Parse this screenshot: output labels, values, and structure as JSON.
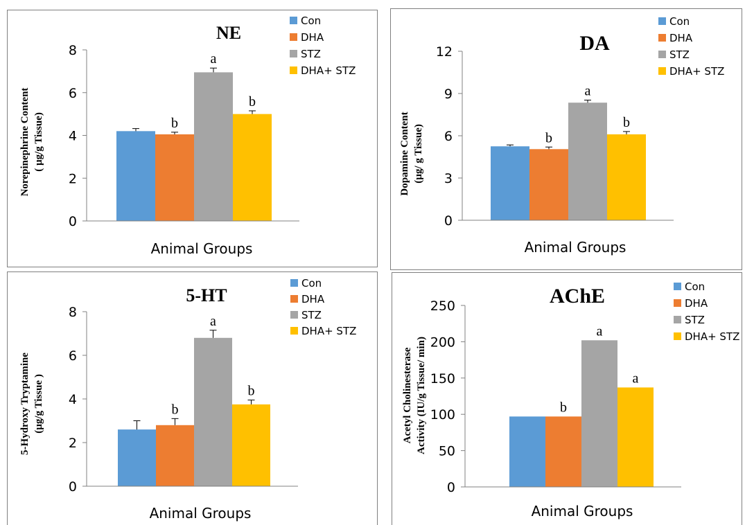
{
  "colors": {
    "Con": "#5B9BD5",
    "DHA": "#ED7D31",
    "STZ": "#A5A5A5",
    "DHA+ STZ": "#FFC000"
  },
  "chart_data": [
    {
      "type": "bar",
      "title": "NE",
      "xlabel": "Animal Groups",
      "ylabel": [
        "Norepinephrine Content",
        "( µg/g Tissue)"
      ],
      "ylim": [
        0,
        8
      ],
      "yticks": [
        0,
        2,
        4,
        6,
        8
      ],
      "legend": "top-right",
      "series": [
        {
          "name": "Con",
          "value": 4.2,
          "error": 0.12,
          "sig": ""
        },
        {
          "name": "DHA",
          "value": 4.05,
          "error": 0.1,
          "sig": "b"
        },
        {
          "name": "STZ",
          "value": 6.95,
          "error": 0.2,
          "sig": "a"
        },
        {
          "name": "DHA+ STZ",
          "value": 5.0,
          "error": 0.15,
          "sig": "b"
        }
      ]
    },
    {
      "type": "bar",
      "title": "DA",
      "xlabel": "Animal Groups",
      "ylabel": [
        "Dopamine Content",
        "(µg/ g Tissue)"
      ],
      "ylim": [
        0,
        12
      ],
      "yticks": [
        0,
        3,
        6,
        9,
        12
      ],
      "legend": "top-right",
      "series": [
        {
          "name": "Con",
          "value": 5.25,
          "error": 0.1,
          "sig": ""
        },
        {
          "name": "DHA",
          "value": 5.05,
          "error": 0.15,
          "sig": "b"
        },
        {
          "name": "STZ",
          "value": 8.35,
          "error": 0.18,
          "sig": "a"
        },
        {
          "name": "DHA+ STZ",
          "value": 6.1,
          "error": 0.2,
          "sig": "b"
        }
      ]
    },
    {
      "type": "bar",
      "title": "5-HT",
      "xlabel": "Animal Groups",
      "ylabel": [
        "5-Hydroxy Tryptamine",
        "(µg/g Tissue )"
      ],
      "ylim": [
        0,
        8
      ],
      "yticks": [
        0,
        2,
        4,
        6,
        8
      ],
      "legend": "top-right",
      "series": [
        {
          "name": "Con",
          "value": 2.6,
          "error": 0.4,
          "sig": ""
        },
        {
          "name": "DHA",
          "value": 2.8,
          "error": 0.3,
          "sig": "b"
        },
        {
          "name": "STZ",
          "value": 6.8,
          "error": 0.35,
          "sig": "a"
        },
        {
          "name": "DHA+ STZ",
          "value": 3.75,
          "error": 0.2,
          "sig": "b"
        }
      ]
    },
    {
      "type": "bar",
      "title": "AChE",
      "xlabel": "Animal Groups",
      "ylabel": [
        "Acetyl Cholinesterase",
        "Activity  (IU/g Tissue/ min)"
      ],
      "ylim": [
        0,
        250
      ],
      "yticks": [
        0,
        50,
        100,
        150,
        200,
        250
      ],
      "legend": "top-right",
      "series": [
        {
          "name": "Con",
          "value": 97,
          "error": 0,
          "sig": ""
        },
        {
          "name": "DHA",
          "value": 97,
          "error": 0,
          "sig": "b"
        },
        {
          "name": "STZ",
          "value": 202,
          "error": 0,
          "sig": "a"
        },
        {
          "name": "DHA+ STZ",
          "value": 137,
          "error": 0,
          "sig": "a"
        }
      ]
    }
  ]
}
